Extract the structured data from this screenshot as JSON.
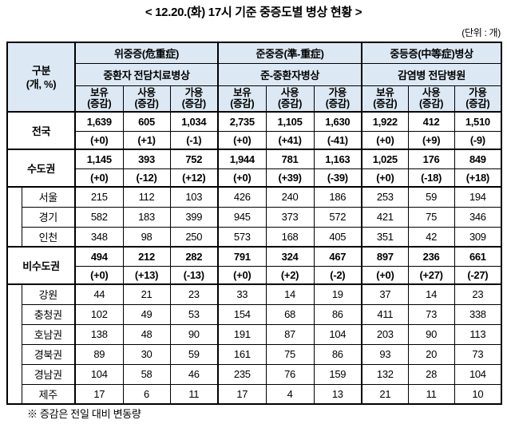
{
  "title": "< 12.20.(화) 17시 기준 중증도별 병상 현황 >",
  "unit_note": "(단위 : 개)",
  "footnote": "※ 증감은 전일 대비 변동량",
  "table": {
    "corner": {
      "line1": "구분",
      "line2": "(개, %)"
    },
    "groups": [
      {
        "title": "위중증(危重症)",
        "subtitle": "중환자 전담치료병상"
      },
      {
        "title": "준중증(準-重症)",
        "subtitle": "준-중환자병상"
      },
      {
        "title": "중등증(中等症)병상",
        "subtitle": "감염병 전담병원"
      }
    ],
    "metrics": [
      "보유",
      "사용",
      "가용"
    ],
    "change_label": "(증감)",
    "header_bg_color": "#DCE8F4",
    "sections": [
      {
        "kind": "summary",
        "name": "전국",
        "values": [
          "1,639",
          "605",
          "1,034",
          "2,735",
          "1,105",
          "1,630",
          "1,922",
          "412",
          "1,510"
        ],
        "changes": [
          "(+0)",
          "(+1)",
          "(-1)",
          "(+0)",
          "(+41)",
          "(-41)",
          "(+0)",
          "(+9)",
          "(-9)"
        ]
      },
      {
        "kind": "summary",
        "name": "수도권",
        "values": [
          "1,145",
          "393",
          "752",
          "1,944",
          "781",
          "1,163",
          "1,025",
          "176",
          "849"
        ],
        "changes": [
          "(+0)",
          "(-12)",
          "(+12)",
          "(+0)",
          "(+39)",
          "(-39)",
          "(+0)",
          "(-18)",
          "(+18)"
        ]
      },
      {
        "kind": "details",
        "rows": [
          {
            "name": "서울",
            "values": [
              "215",
              "112",
              "103",
              "426",
              "240",
              "186",
              "253",
              "59",
              "194"
            ]
          },
          {
            "name": "경기",
            "values": [
              "582",
              "183",
              "399",
              "945",
              "373",
              "572",
              "421",
              "75",
              "346"
            ]
          },
          {
            "name": "인천",
            "values": [
              "348",
              "98",
              "250",
              "573",
              "168",
              "405",
              "351",
              "42",
              "309"
            ]
          }
        ]
      },
      {
        "kind": "summary",
        "name": "비수도권",
        "values": [
          "494",
          "212",
          "282",
          "791",
          "324",
          "467",
          "897",
          "236",
          "661"
        ],
        "changes": [
          "(+0)",
          "(+13)",
          "(-13)",
          "(+0)",
          "(+2)",
          "(-2)",
          "(+0)",
          "(+27)",
          "(-27)"
        ]
      },
      {
        "kind": "details",
        "rows": [
          {
            "name": "강원",
            "values": [
              "44",
              "21",
              "23",
              "33",
              "14",
              "19",
              "37",
              "14",
              "23"
            ]
          },
          {
            "name": "충청권",
            "values": [
              "102",
              "49",
              "53",
              "154",
              "68",
              "86",
              "411",
              "73",
              "338"
            ]
          },
          {
            "name": "호남권",
            "values": [
              "138",
              "48",
              "90",
              "191",
              "87",
              "104",
              "203",
              "90",
              "113"
            ]
          },
          {
            "name": "경북권",
            "values": [
              "89",
              "30",
              "59",
              "161",
              "75",
              "86",
              "93",
              "20",
              "73"
            ]
          },
          {
            "name": "경남권",
            "values": [
              "104",
              "58",
              "46",
              "235",
              "76",
              "159",
              "132",
              "28",
              "104"
            ]
          },
          {
            "name": "제주",
            "values": [
              "17",
              "6",
              "11",
              "17",
              "4",
              "13",
              "21",
              "11",
              "10"
            ]
          }
        ]
      }
    ]
  }
}
